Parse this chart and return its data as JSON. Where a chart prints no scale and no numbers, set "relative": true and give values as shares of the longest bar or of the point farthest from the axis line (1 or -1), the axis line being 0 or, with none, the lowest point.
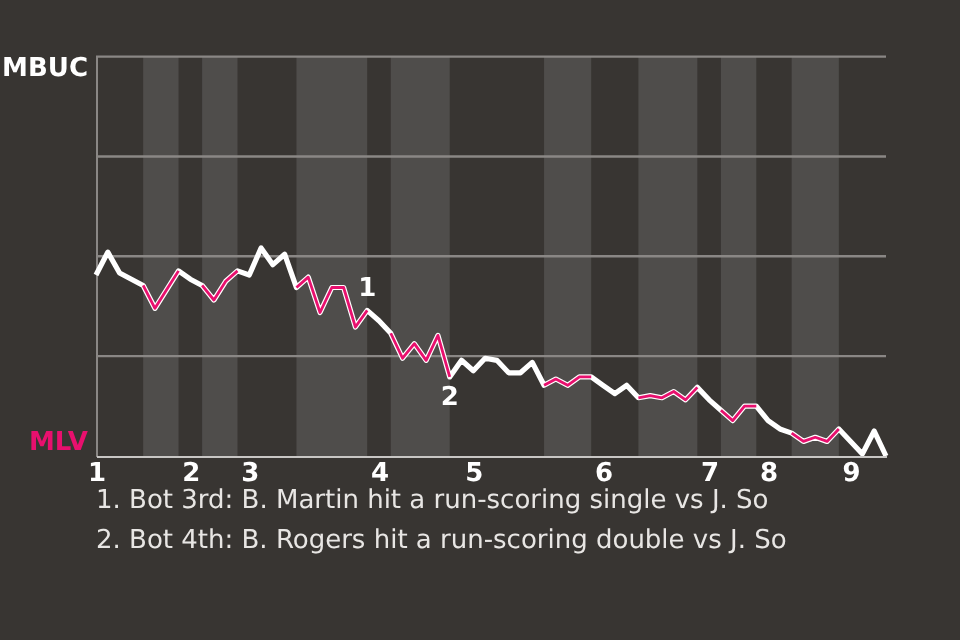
{
  "chart_data": {
    "type": "line",
    "relative": true,
    "categories": [
      "1",
      null,
      null,
      null,
      null,
      null,
      null,
      null,
      "2",
      null,
      null,
      null,
      null,
      "3",
      null,
      null,
      null,
      null,
      null,
      null,
      null,
      null,
      null,
      null,
      "4",
      null,
      null,
      null,
      null,
      null,
      null,
      null,
      "5",
      null,
      null,
      null,
      null,
      null,
      null,
      null,
      null,
      null,
      null,
      "6",
      null,
      null,
      null,
      null,
      null,
      null,
      null,
      null,
      "7",
      null,
      null,
      null,
      null,
      "8",
      null,
      null,
      null,
      null,
      null,
      null,
      "9",
      null,
      null,
      null
    ],
    "series": [
      {
        "color": "#ffffff",
        "values": [
          0.87,
          0.98,
          0.88,
          0.85,
          0.82,
          0.71,
          0.8,
          0.89,
          0.85,
          0.82,
          0.75,
          0.84,
          0.89,
          0.87,
          1,
          0.92,
          0.97,
          0.81,
          0.86,
          0.69,
          0.81,
          0.81,
          0.62,
          0.7,
          0.65,
          0.59,
          0.47,
          0.54,
          0.46,
          0.58,
          0.38,
          0.46,
          0.41,
          0.47,
          0.46,
          0.4,
          0.4,
          0.45,
          0.34,
          0.37,
          0.34,
          0.38,
          0.38,
          0.34,
          0.3,
          0.34,
          0.28,
          0.29,
          0.28,
          0.31,
          0.27,
          0.33,
          0.27,
          0.22,
          0.17,
          0.24,
          0.24,
          0.17,
          0.13,
          0.11,
          0.07,
          0.09,
          0.07,
          0.13,
          0.07,
          0.01,
          0.12,
          0
        ]
      },
      {
        "color": "#e8106e",
        "values": [
          null,
          null,
          null,
          null,
          0.82,
          0.71,
          0.8,
          0.89,
          null,
          0.82,
          0.75,
          0.84,
          0.89,
          null,
          null,
          null,
          null,
          0.81,
          0.86,
          0.69,
          0.81,
          0.81,
          0.62,
          0.7,
          null,
          0.59,
          0.47,
          0.54,
          0.46,
          0.58,
          0.38,
          null,
          null,
          null,
          null,
          null,
          null,
          null,
          0.34,
          0.37,
          0.34,
          0.38,
          0.38,
          null,
          null,
          null,
          0.28,
          0.29,
          0.28,
          0.31,
          0.27,
          0.33,
          null,
          0.22,
          0.17,
          0.24,
          0.24,
          null,
          null,
          0.11,
          0.07,
          0.09,
          0.07,
          0.13,
          null,
          null,
          null,
          null
        ]
      }
    ],
    "ref_lines": [
      {
        "axis": "y",
        "value": 0.48,
        "color": "#8a8785"
      },
      {
        "axis": "y",
        "value": 0.96,
        "color": "#8a8785"
      },
      {
        "axis": "y",
        "value": 1.44,
        "color": "#8a8785"
      },
      {
        "axis": "y",
        "value": 1.92,
        "color": "#8a8785"
      }
    ],
    "line_style": "solid",
    "annotations": [
      {
        "text": "1",
        "y": 0.7
      },
      {
        "text": "2",
        "y": 0.38
      },
      "MBUC",
      "MLV",
      "1. Bot 3rd: B. Martin hit a run-scoring single vs J. So",
      "2. Bot 4th: B. Rogers hit a run-scoring double vs J. So"
    ]
  }
}
